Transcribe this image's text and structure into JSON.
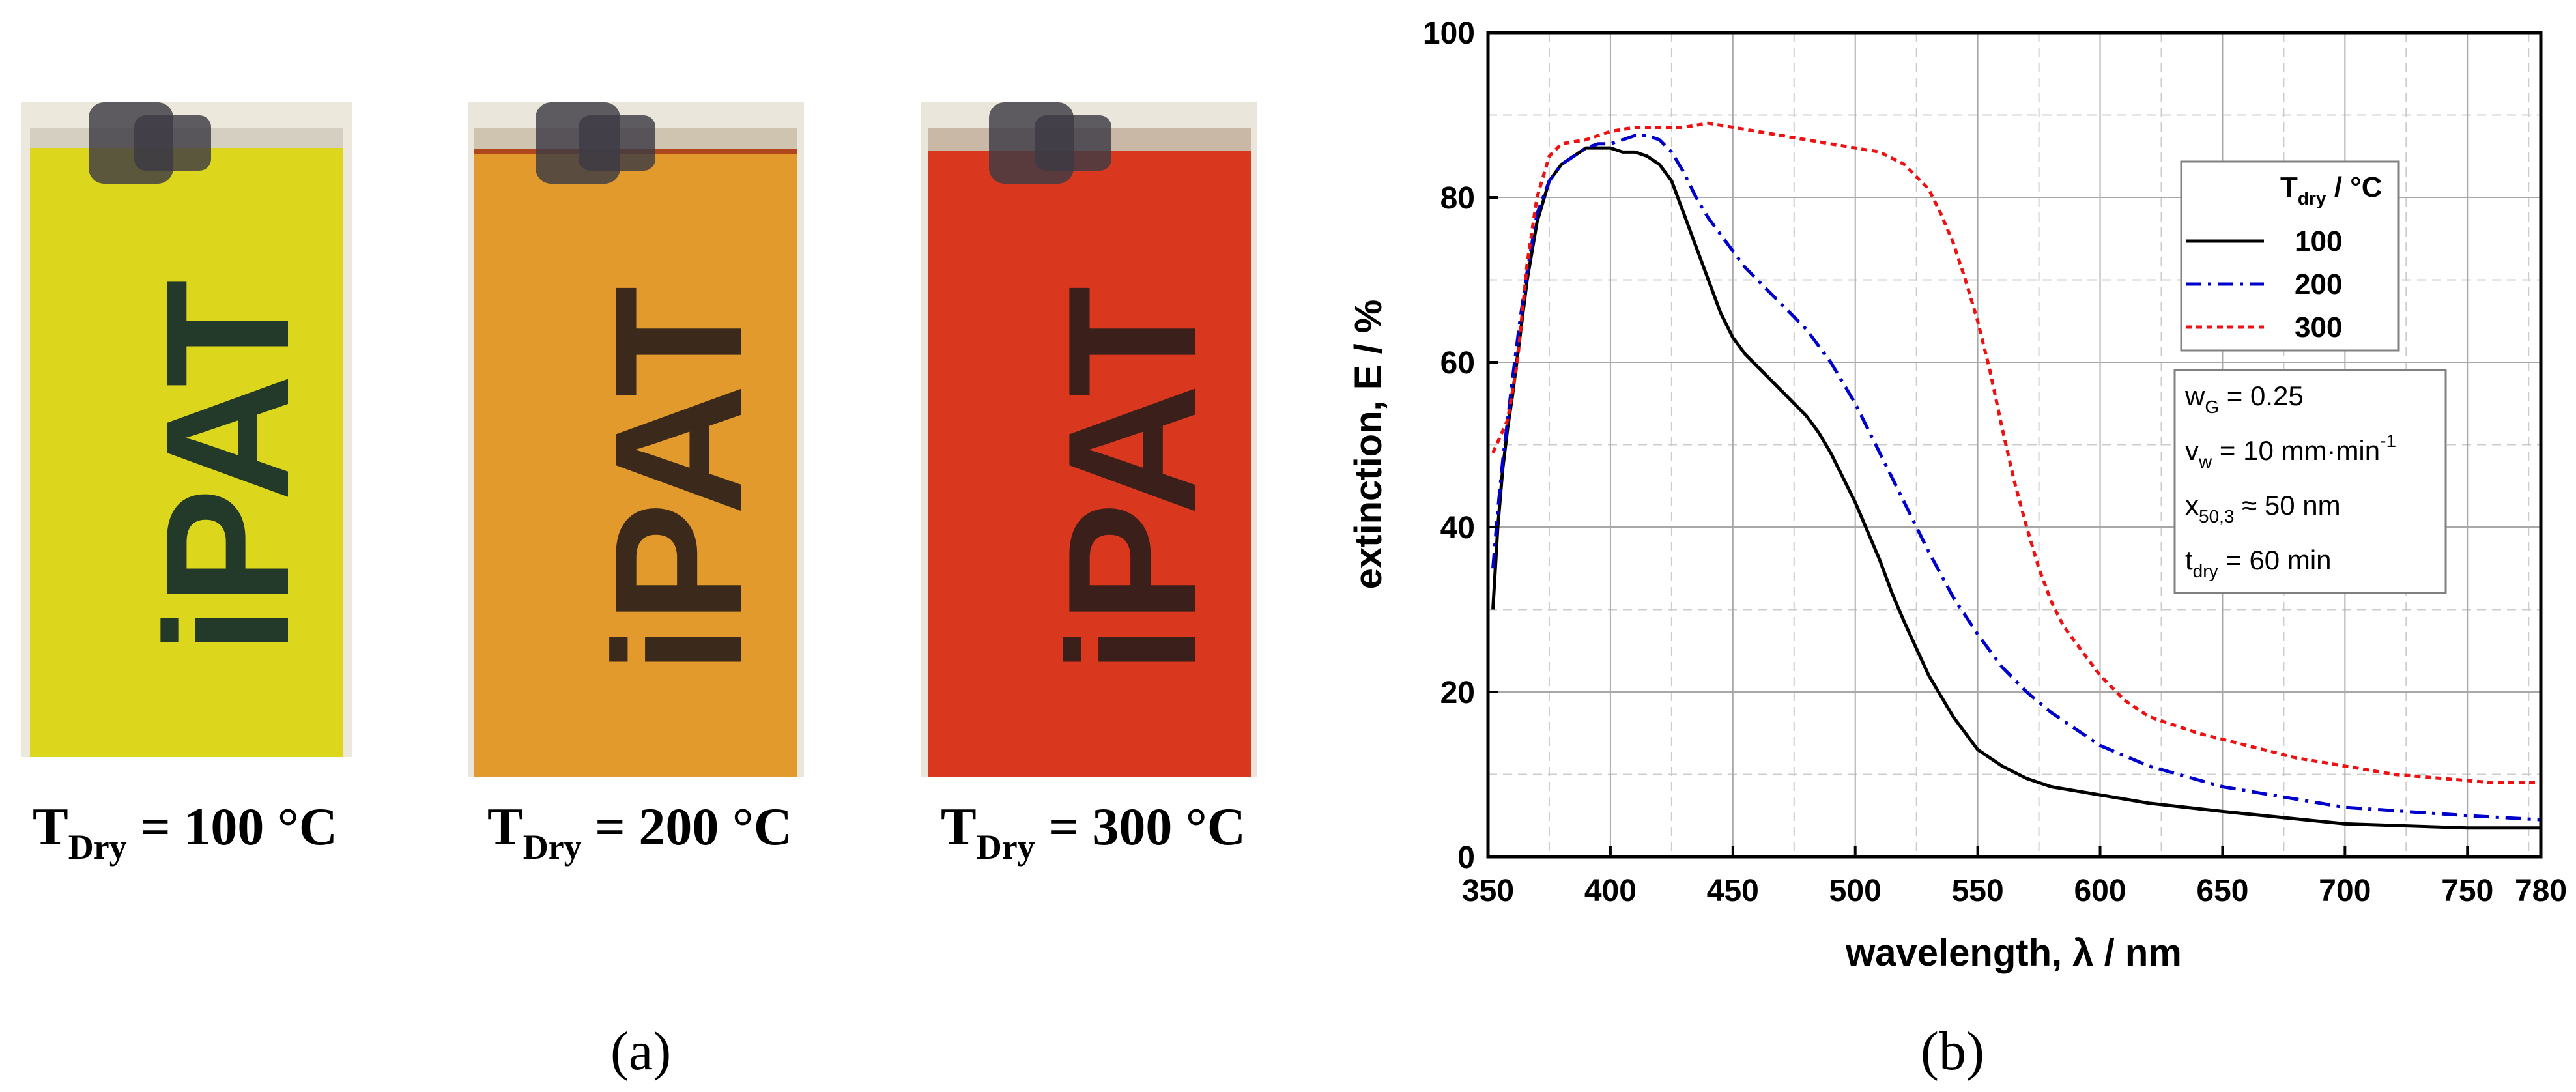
{
  "figure": {
    "panel_a_label": "(a)",
    "panel_b_label": "(b)"
  },
  "photos": [
    {
      "caption_main": "T",
      "caption_sub": "Dry",
      "caption_rest": " = 100 °C",
      "glass_color": "#dcd71c",
      "logo_text": "iPAT"
    },
    {
      "caption_main": "T",
      "caption_sub": "Dry",
      "caption_rest": " = 200 °C",
      "glass_color": "#e39a2d",
      "logo_text": "iPAT"
    },
    {
      "caption_main": "T",
      "caption_sub": "Dry",
      "caption_rest": " = 300 °C",
      "glass_color": "#d9381f",
      "logo_text": "iPAT"
    }
  ],
  "chart_data": {
    "type": "line",
    "title": "",
    "xlabel": "wavelength, λ / nm",
    "ylabel": "extinction, E / %",
    "xlim": [
      350,
      780
    ],
    "ylim": [
      0,
      100
    ],
    "xticks": [
      "350",
      "400",
      "450",
      "500",
      "550",
      "600",
      "650",
      "700",
      "750",
      "780"
    ],
    "yticks": [
      "0",
      "20",
      "40",
      "60",
      "80",
      "100"
    ],
    "grid": true,
    "legend": {
      "title_main": "T",
      "title_sub": "dry",
      "title_rest": " / °C",
      "position": "top-right"
    },
    "series": [
      {
        "name": "100",
        "color": "#000000",
        "style": "solid",
        "x": [
          352,
          354,
          356,
          358,
          360,
          363,
          366,
          370,
          375,
          380,
          385,
          390,
          395,
          400,
          405,
          410,
          415,
          420,
          425,
          430,
          435,
          440,
          445,
          450,
          455,
          460,
          465,
          470,
          475,
          480,
          485,
          490,
          495,
          500,
          505,
          510,
          515,
          520,
          530,
          540,
          550,
          560,
          570,
          580,
          590,
          600,
          620,
          650,
          700,
          750,
          780
        ],
        "y": [
          30,
          40,
          47,
          52,
          56,
          63,
          70,
          77,
          82,
          84,
          85,
          86,
          86,
          86,
          85.5,
          85.5,
          85,
          84,
          82,
          78,
          74,
          70,
          66,
          63,
          61,
          59.5,
          58,
          56.5,
          55,
          53.5,
          51.5,
          49,
          46,
          43,
          39.5,
          36,
          32,
          28.5,
          22,
          17,
          13,
          11,
          9.5,
          8.5,
          8,
          7.5,
          6.5,
          5.5,
          4,
          3.5,
          3.5
        ]
      },
      {
        "name": "200",
        "color": "#0000cc",
        "style": "dashdot",
        "x": [
          352,
          354,
          356,
          358,
          360,
          363,
          366,
          370,
          375,
          380,
          385,
          390,
          395,
          400,
          405,
          410,
          415,
          420,
          425,
          430,
          435,
          440,
          445,
          450,
          455,
          460,
          465,
          470,
          475,
          480,
          485,
          490,
          495,
          500,
          510,
          520,
          530,
          540,
          550,
          560,
          570,
          580,
          590,
          600,
          620,
          650,
          680,
          700,
          750,
          780
        ],
        "y": [
          35,
          42,
          48,
          53,
          58,
          65,
          71,
          78,
          82,
          84,
          85,
          86,
          86.5,
          86.5,
          87,
          87.5,
          87.5,
          87,
          85.5,
          83,
          80,
          77.5,
          75.5,
          73.5,
          71.5,
          70,
          68.5,
          67,
          65.5,
          64,
          62,
          60,
          57.5,
          55,
          49,
          43,
          37,
          31.5,
          27,
          23,
          20,
          17.5,
          15.5,
          13.5,
          11,
          8.5,
          7,
          6,
          5,
          4.5
        ]
      },
      {
        "name": "300",
        "color": "#ee1111",
        "style": "dotted",
        "x": [
          352,
          355,
          358,
          362,
          366,
          370,
          375,
          380,
          390,
          400,
          410,
          420,
          430,
          440,
          450,
          460,
          470,
          480,
          490,
          500,
          510,
          520,
          530,
          535,
          540,
          545,
          550,
          555,
          560,
          565,
          570,
          575,
          580,
          585,
          590,
          600,
          610,
          620,
          640,
          660,
          680,
          700,
          720,
          740,
          760,
          780
        ],
        "y": [
          49,
          51,
          53,
          60,
          72,
          80,
          85,
          86.5,
          87,
          88,
          88.5,
          88.5,
          88.5,
          89,
          88.5,
          88,
          87.5,
          87,
          86.5,
          86,
          85.5,
          84,
          81,
          78,
          74.5,
          70,
          65,
          59,
          52,
          45.5,
          40,
          35,
          31,
          28,
          26,
          22,
          19,
          17,
          15,
          13.5,
          12,
          11,
          10,
          9.5,
          9,
          9
        ]
      }
    ],
    "info_box": [
      {
        "main": "w",
        "sub": "G",
        "rest": " = 0.25",
        "sup": ""
      },
      {
        "main": "v",
        "sub": "w",
        "rest": " = 10 mm·min",
        "sup": "-1"
      },
      {
        "main": "x",
        "sub": "50,3",
        "rest": " ≈ 50 nm",
        "sup": ""
      },
      {
        "main": "t",
        "sub": "dry",
        "rest": " =  60 min",
        "sup": ""
      }
    ]
  }
}
